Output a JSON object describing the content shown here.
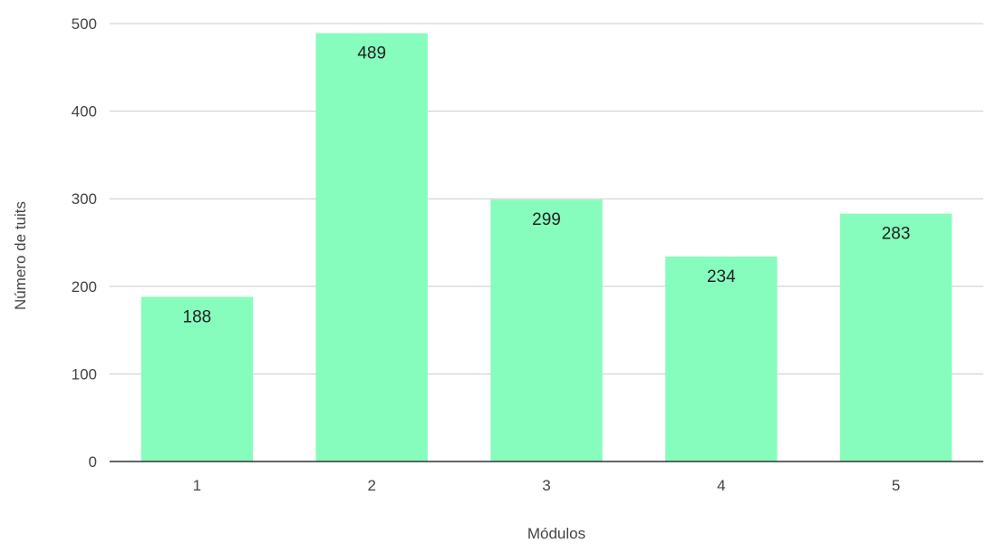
{
  "chart_data": {
    "type": "bar",
    "categories": [
      "1",
      "2",
      "3",
      "4",
      "5"
    ],
    "values": [
      188,
      489,
      299,
      234,
      283
    ],
    "data_labels": [
      "188",
      "489",
      "299",
      "234",
      "283"
    ],
    "title": "",
    "xlabel": "Módulos",
    "ylabel": "Número de tuits",
    "ylim": [
      0,
      500
    ],
    "yticks": [
      0,
      100,
      200,
      300,
      400,
      500
    ],
    "ytick_labels": [
      "0",
      "100",
      "200",
      "300",
      "400",
      "500"
    ],
    "grid": true,
    "legend": "none",
    "bar_color": "#86fdbc",
    "axis_color": "#333333",
    "grid_color": "#cccccc"
  }
}
